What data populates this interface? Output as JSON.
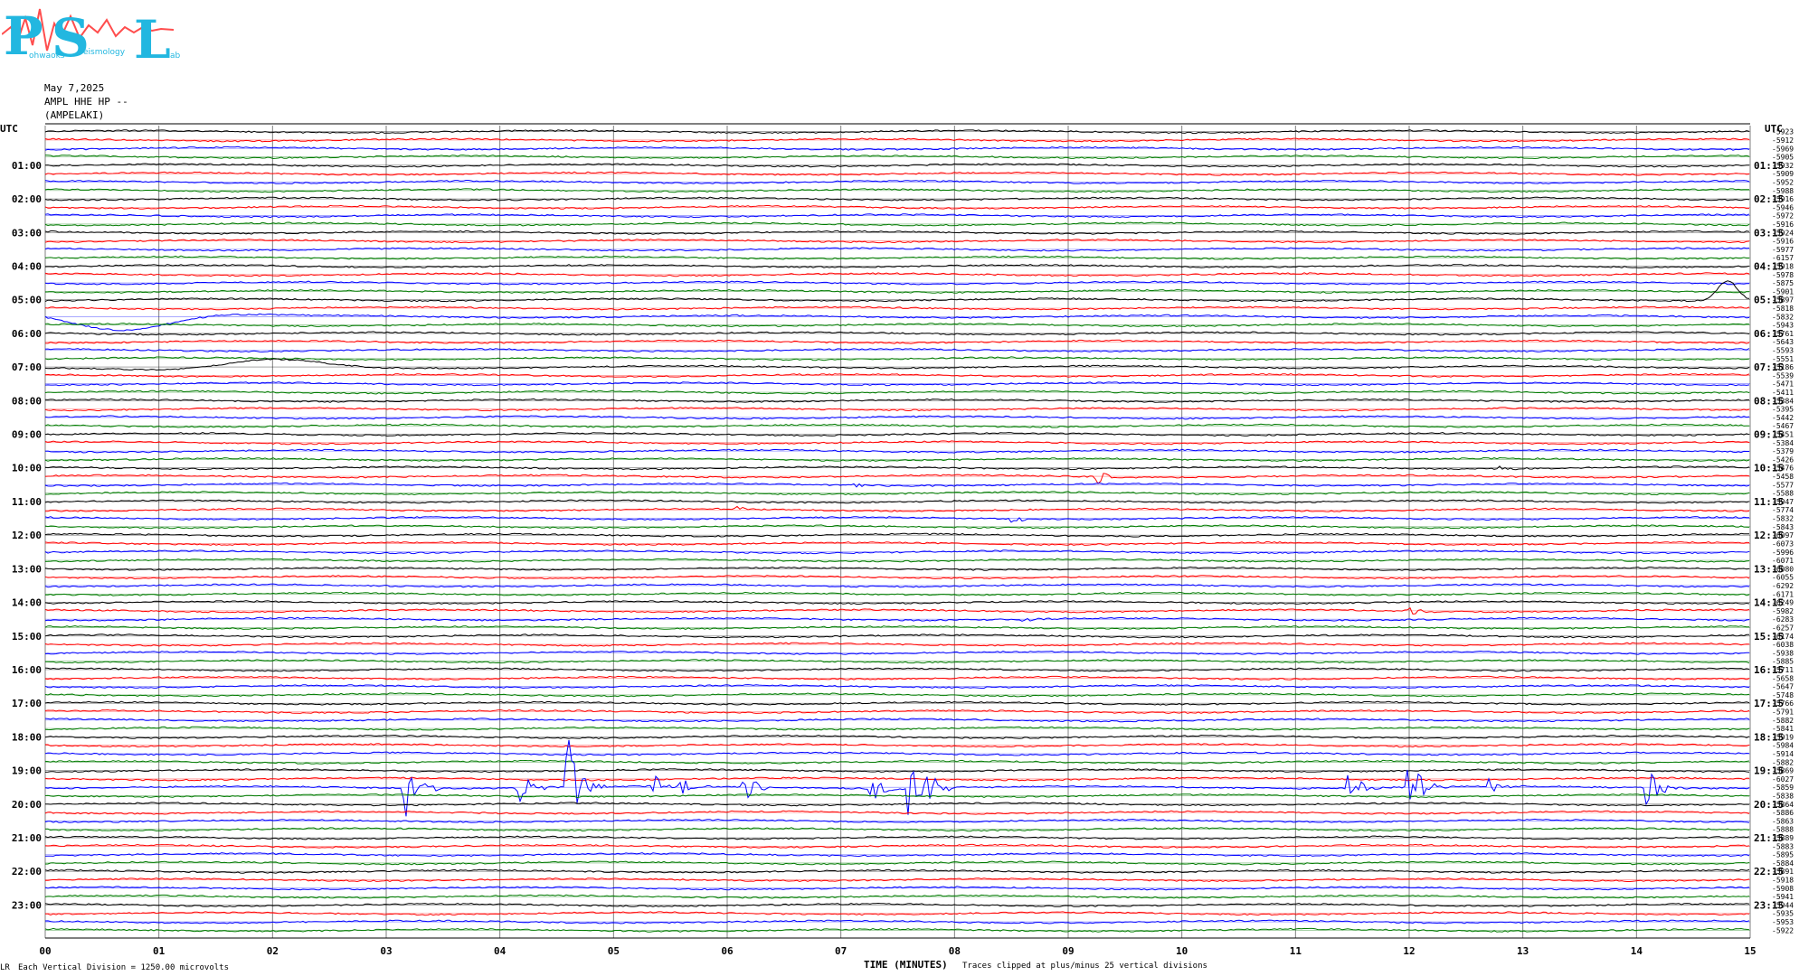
{
  "logo": {
    "letters": [
      "P",
      "S",
      "L"
    ],
    "small": [
      "ohwaoks",
      "eismology",
      "ab"
    ]
  },
  "header": {
    "date": "May 7,2025",
    "station": "AMPL HHE HP --",
    "name": "(AMPELAKI)"
  },
  "utc_left": "UTC",
  "utc_right": "UTC",
  "footer": {
    "division": "Each Vertical Division = 1250.00 microvolts",
    "clip": "Traces clipped at plus/minus 25 vertical divisions",
    "corner": "LR"
  },
  "colors": {
    "black": "#000000",
    "red": "#ff0000",
    "blue": "#0000ff",
    "green": "#007a00",
    "grid": "#808080"
  },
  "chart_data": {
    "type": "line",
    "xlabel": "TIME (MINUTES)",
    "x_ticks": [
      "00",
      "01",
      "02",
      "03",
      "04",
      "05",
      "06",
      "07",
      "08",
      "09",
      "10",
      "11",
      "12",
      "13",
      "14",
      "15"
    ],
    "xlim": [
      0,
      15
    ],
    "left_hour_labels": [
      "01:00",
      "02:00",
      "03:00",
      "04:00",
      "05:00",
      "06:00",
      "07:00",
      "08:00",
      "09:00",
      "10:00",
      "11:00",
      "12:00",
      "13:00",
      "14:00",
      "15:00",
      "16:00",
      "17:00",
      "18:00",
      "19:00",
      "20:00",
      "21:00",
      "22:00",
      "23:00"
    ],
    "right_hour_labels": [
      "01:15",
      "02:15",
      "03:15",
      "04:15",
      "05:15",
      "06:15",
      "07:15",
      "08:15",
      "09:15",
      "10:15",
      "11:15",
      "12:15",
      "13:15",
      "14:15",
      "15:15",
      "16:15",
      "17:15",
      "18:15",
      "19:15",
      "20:15",
      "21:15",
      "22:15",
      "23:15"
    ],
    "trace_colors_cycle": [
      "black",
      "red",
      "blue",
      "green"
    ],
    "trace_count": 96,
    "trace_values": [
      "-5923",
      "-5912",
      "-5969",
      "-5905",
      "-5932",
      "-5909",
      "-5952",
      "-5988",
      "-5916",
      "-5946",
      "-5972",
      "-5916",
      "-5924",
      "-5916",
      "-5977",
      "-6157",
      "-5918",
      "-5978",
      "-5875",
      "-5901",
      "-5897",
      "-5818",
      "-5832",
      "-5943",
      "-5761",
      "-5643",
      "-5593",
      "-5551",
      "-5186",
      "-5539",
      "-5471",
      "-5411",
      "-5384",
      "-5395",
      "-5442",
      "-5467",
      "-5451",
      "-5384",
      "-5379",
      "-5426",
      "-5476",
      "-5458",
      "-5577",
      "-5588",
      "-5947",
      "-5774",
      "-5832",
      "-5843",
      "-6097",
      "-6073",
      "-5996",
      "-6071",
      "-6080",
      "-6055",
      "-6292",
      "-6171",
      "-6249",
      "-5982",
      "-6283",
      "-6257",
      "-6174",
      "-6038",
      "-5938",
      "-5885",
      "-5711",
      "-5658",
      "-5647",
      "-5748",
      "-5766",
      "-5791",
      "-5882",
      "-5841",
      "-5919",
      "-5984",
      "-5914",
      "-5882",
      "-5869",
      "-6027",
      "-5859",
      "-5838",
      "-5864",
      "-5886",
      "-5863",
      "-5888",
      "-5889",
      "-5883",
      "-5895",
      "-5884",
      "-5891",
      "-5918",
      "-5908",
      "-5941",
      "-5944",
      "-5935",
      "-5953",
      "-5922"
    ],
    "events": [
      {
        "trace": 20,
        "minute": 14.8,
        "amp": 22,
        "kind": "swell"
      },
      {
        "trace": 22,
        "minute": 0.0,
        "amp": 14,
        "kind": "drift"
      },
      {
        "trace": 28,
        "minute": 1.2,
        "amp": 8,
        "kind": "drift"
      },
      {
        "trace": 40,
        "minute": 12.8,
        "amp": 3,
        "kind": "burst"
      },
      {
        "trace": 41,
        "minute": 9.25,
        "amp": 10,
        "kind": "burst"
      },
      {
        "trace": 42,
        "minute": 7.1,
        "amp": 5,
        "kind": "burst"
      },
      {
        "trace": 45,
        "minute": 6.1,
        "amp": 3,
        "kind": "burst"
      },
      {
        "trace": 46,
        "minute": 8.5,
        "amp": 4,
        "kind": "burst"
      },
      {
        "trace": 57,
        "minute": 11.95,
        "amp": 8,
        "kind": "burst"
      },
      {
        "trace": 58,
        "minute": 8.6,
        "amp": 3,
        "kind": "burst"
      },
      {
        "trace": 78,
        "minute": 3.15,
        "amp": 40,
        "kind": "burst"
      },
      {
        "trace": 78,
        "minute": 4.15,
        "amp": 22,
        "kind": "burst"
      },
      {
        "trace": 78,
        "minute": 4.6,
        "amp": 60,
        "kind": "burst"
      },
      {
        "trace": 78,
        "minute": 5.35,
        "amp": 14,
        "kind": "burst"
      },
      {
        "trace": 78,
        "minute": 5.6,
        "amp": 10,
        "kind": "burst"
      },
      {
        "trace": 78,
        "minute": 6.15,
        "amp": 18,
        "kind": "burst"
      },
      {
        "trace": 78,
        "minute": 7.25,
        "amp": 18,
        "kind": "burst"
      },
      {
        "trace": 78,
        "minute": 7.6,
        "amp": 45,
        "kind": "burst"
      },
      {
        "trace": 78,
        "minute": 7.75,
        "amp": 28,
        "kind": "burst"
      },
      {
        "trace": 78,
        "minute": 11.45,
        "amp": 28,
        "kind": "burst"
      },
      {
        "trace": 78,
        "minute": 12.0,
        "amp": 34,
        "kind": "burst"
      },
      {
        "trace": 78,
        "minute": 12.7,
        "amp": 8,
        "kind": "burst"
      },
      {
        "trace": 78,
        "minute": 14.1,
        "amp": 22,
        "kind": "burst"
      }
    ]
  }
}
